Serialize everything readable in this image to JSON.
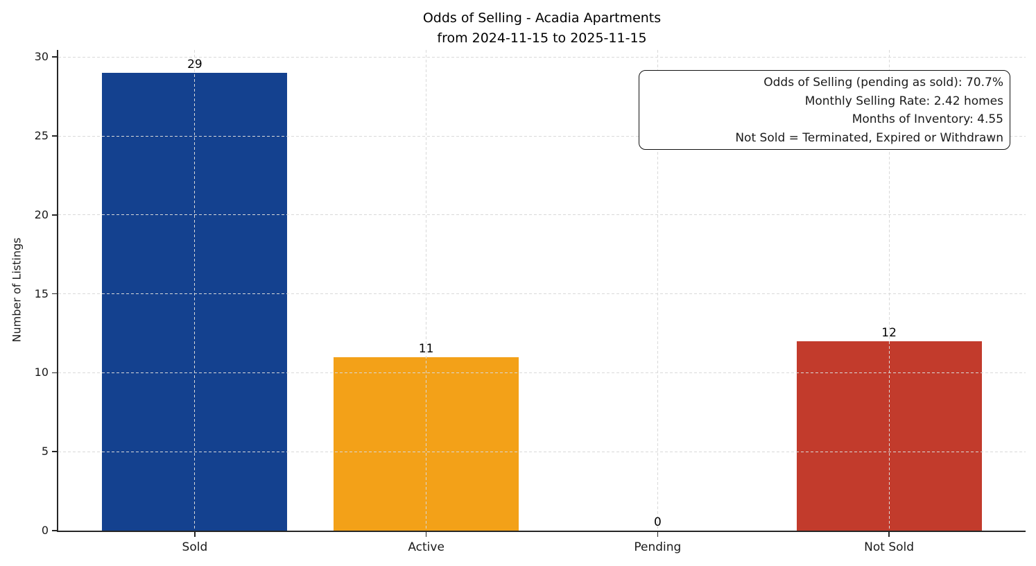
{
  "chart_data": {
    "type": "bar",
    "title": "Odds of Selling - Acadia Apartments",
    "subtitle": "from 2024-11-15 to 2025-11-15",
    "ylabel": "Number of Listings",
    "xlabel": "",
    "categories": [
      "Sold",
      "Active",
      "Pending",
      "Not Sold"
    ],
    "values": [
      29,
      11,
      0,
      12
    ],
    "bar_colors": [
      "#14418f",
      "#f3a118",
      null,
      "#c23b2c"
    ],
    "yticks": [
      0,
      5,
      10,
      15,
      20,
      25,
      30
    ],
    "ylim": [
      0,
      30.45
    ],
    "grid": "dashed, both axes, light gray, drawn over bars",
    "legend_position": "none",
    "annotation": {
      "lines": [
        "Odds of Selling (pending as sold): 70.7%",
        "Monthly Selling Rate: 2.42 homes",
        "Months of Inventory: 4.55",
        "Not Sold = Terminated, Expired or Withdrawn"
      ]
    }
  }
}
